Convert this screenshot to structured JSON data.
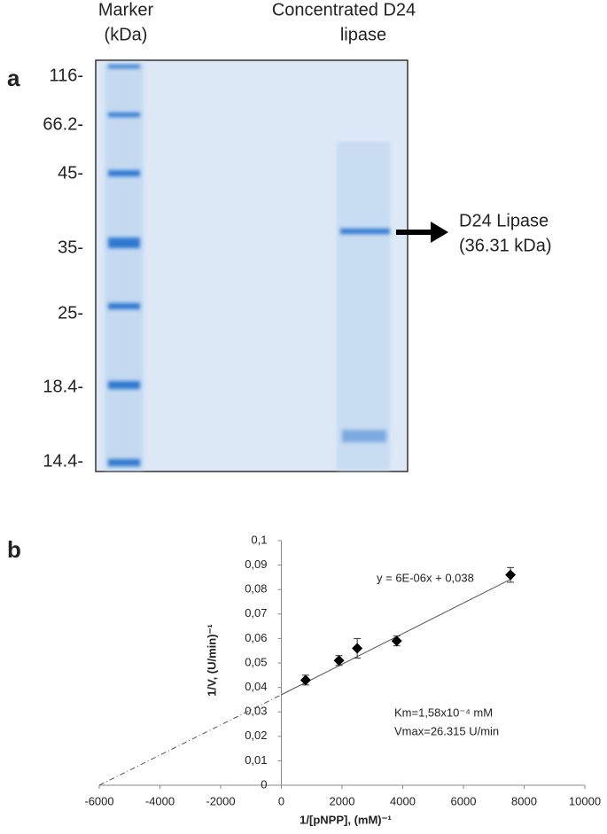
{
  "gel": {
    "panel_label": "a",
    "header_marker": [
      "Marker",
      "(kDa)"
    ],
    "header_sample": [
      "Concentrated D24",
      "lipase"
    ],
    "marker_labels": [
      "116-",
      "66.2-",
      "45-",
      "35-",
      "25-",
      "18.4-",
      "14.4-"
    ],
    "band_label": [
      "D24 Lipase",
      "(36.31 kDa)"
    ]
  },
  "chart_data": {
    "type": "scatter",
    "panel_label": "b",
    "x_label": "1/[pNPP], (mM)⁻¹",
    "y_label": "1/V, (U/min)⁻¹",
    "x": [
      800,
      1900,
      2500,
      3800,
      7550
    ],
    "values": [
      0.043,
      0.051,
      0.056,
      0.059,
      0.086
    ],
    "errors": [
      0.002,
      0.002,
      0.004,
      0.002,
      0.003
    ],
    "color": "#000000",
    "trendline": {
      "x": [
        -6000,
        0,
        7600
      ],
      "values": [
        0,
        0.037,
        0.0845
      ]
    },
    "annotations": [
      "y = 6E-06x + 0,038",
      "Km=1,58x10⁻⁴  mM",
      "Vmax=26.315 U/min"
    ],
    "xlim": [
      -6000,
      10000
    ],
    "ylim": [
      0,
      0.1
    ],
    "xticks": [
      -6000,
      -4000,
      -2000,
      0,
      2000,
      4000,
      6000,
      8000,
      10000
    ],
    "yticks": [
      0,
      {
        "value": 0.01,
        "label": "0,01"
      },
      {
        "value": 0.02,
        "label": "0,02"
      },
      {
        "value": 0.03,
        "label": "0,03"
      },
      {
        "value": 0.04,
        "label": "0,04"
      },
      {
        "value": 0.05,
        "label": "0,05"
      },
      {
        "value": 0.06,
        "label": "0,06"
      },
      {
        "value": 0.07,
        "label": "0,07"
      },
      {
        "value": 0.08,
        "label": "0,08"
      },
      {
        "value": 0.09,
        "label": "0,09"
      },
      {
        "value": 0.1,
        "label": "0,1"
      }
    ]
  }
}
